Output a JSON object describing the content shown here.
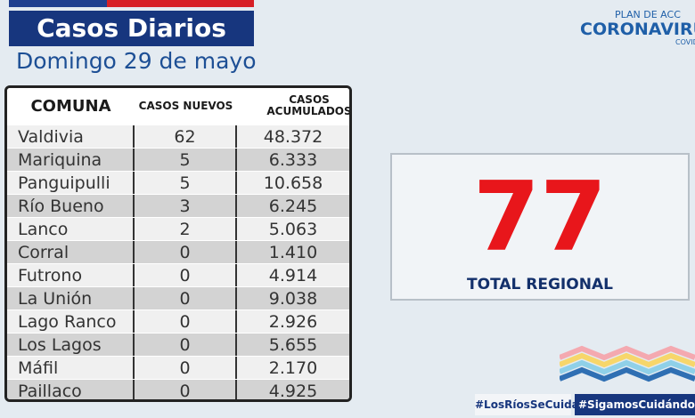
{
  "header": {
    "title": "Casos Diarios",
    "subtitle": "Domingo 29 de mayo"
  },
  "logo": {
    "plan": "PLAN DE ACC",
    "brand": "CORONAVIRU",
    "sub": "COVID"
  },
  "table": {
    "columns": [
      "COMUNA",
      "CASOS NUEVOS",
      "CASOS ACUMULADOS"
    ],
    "rows": [
      [
        "Valdivia",
        "62",
        "48.372"
      ],
      [
        "Mariquina",
        "5",
        "6.333"
      ],
      [
        "Panguipulli",
        "5",
        "10.658"
      ],
      [
        "Río Bueno",
        "3",
        "6.245"
      ],
      [
        "Lanco",
        "2",
        "5.063"
      ],
      [
        "Corral",
        "0",
        "1.410"
      ],
      [
        "Futrono",
        "0",
        "4.914"
      ],
      [
        "La Unión",
        "0",
        "9.038"
      ],
      [
        "Lago Ranco",
        "0",
        "2.926"
      ],
      [
        "Los Lagos",
        "0",
        "5.655"
      ],
      [
        "Máfil",
        "0",
        "2.170"
      ],
      [
        "Paillaco",
        "0",
        "4.925"
      ]
    ]
  },
  "total": {
    "value": "77",
    "label": "TOTAL REGIONAL"
  },
  "hashtags": [
    "#LosRíosSeCuida",
    "#SigamosCuidándon"
  ]
}
